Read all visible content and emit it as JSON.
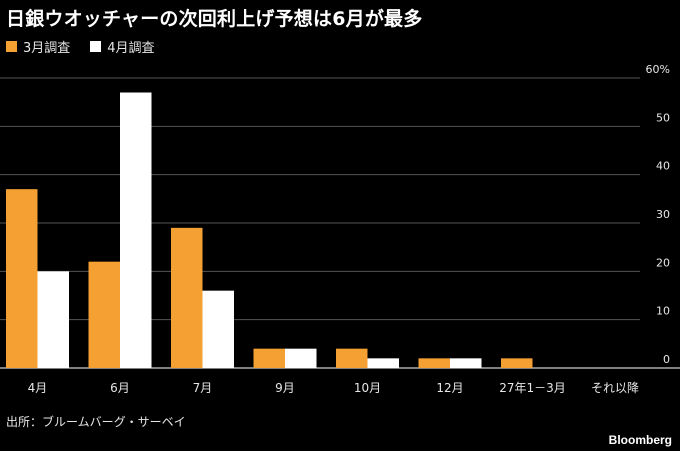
{
  "header": {
    "title": "日銀ウオッチャーの次回利上げ予想は6月が最多"
  },
  "chart_data": {
    "type": "bar",
    "title": "日銀ウオッチャーの次回利上げ予想は6月が最多",
    "xlabel": "",
    "ylabel": "",
    "categories": [
      "4月",
      "6月",
      "7月",
      "9月",
      "10月",
      "12月",
      "27年1－3月",
      "それ以降"
    ],
    "series": [
      {
        "name": "3月調査",
        "color": "#f5a033",
        "values": [
          37,
          22,
          29,
          4,
          4,
          2,
          2,
          0
        ]
      },
      {
        "name": "4月調査",
        "color": "#ffffff",
        "values": [
          20,
          57,
          16,
          4,
          2,
          2,
          0,
          0
        ]
      }
    ],
    "ylim": [
      0,
      60
    ],
    "yticks": [
      {
        "value": 60,
        "label": "60%"
      },
      {
        "value": 50,
        "label": "50"
      },
      {
        "value": 40,
        "label": "40"
      },
      {
        "value": 30,
        "label": "30"
      },
      {
        "value": 20,
        "label": "20"
      },
      {
        "value": 10,
        "label": "10"
      },
      {
        "value": 0,
        "label": "0"
      }
    ],
    "grid": true,
    "y_axis_side": "right",
    "legend_position": "top-left",
    "gridline_color": "#555555",
    "axis_text_color": "#e6e6e6"
  },
  "footer": {
    "source": "出所：ブルームバーグ・サーベイ",
    "brand": "Bloomberg"
  }
}
